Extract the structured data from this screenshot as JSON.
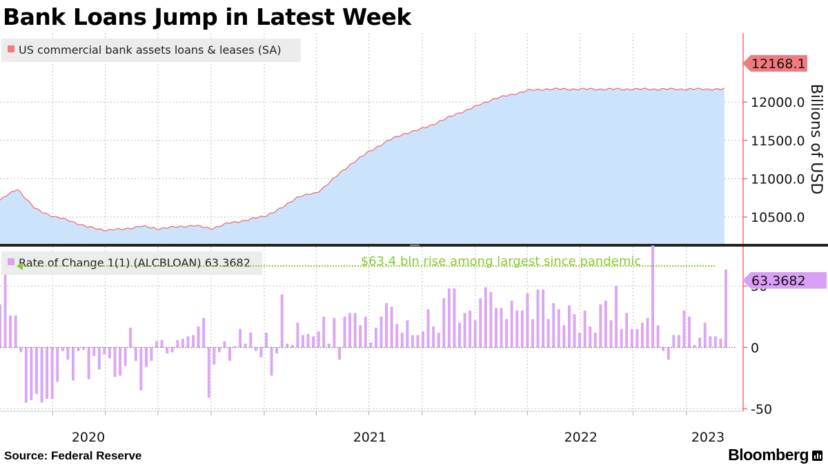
{
  "title": "Bank Loans Jump in Latest Week",
  "source": "Source:  Federal Reserve",
  "brand": "Bloomberg",
  "colors": {
    "area_fill": "#cce4fb",
    "area_line": "#f26d72",
    "bar": "#dba6f3",
    "annotation": "#86c92e",
    "axis": "#f26d72",
    "last_value_top": "#f27a7e",
    "last_value_bottom": "#d9a0f5"
  },
  "chart_data": [
    {
      "type": "area",
      "legend": "US commercial bank assets loans & leases (SA)",
      "ylabel": "Billions of USD",
      "y_ticks": [
        "12000.0",
        "11500.0",
        "11000.0",
        "10500.0"
      ],
      "ylim": [
        10150,
        12900
      ],
      "last_value_label": "12168.1",
      "x": [
        "2019-10-02",
        "2019-11-01",
        "2019-12-01",
        "2020-01-01",
        "2020-02-01",
        "2020-03-01",
        "2020-04-01",
        "2020-05-01",
        "2020-06-01",
        "2020-07-01",
        "2020-08-01",
        "2020-09-01",
        "2020-10-01",
        "2020-11-01",
        "2020-12-01",
        "2021-01-01",
        "2021-02-01",
        "2021-03-01",
        "2021-04-01",
        "2021-05-01",
        "2021-06-01",
        "2021-07-01",
        "2021-08-01",
        "2021-09-01",
        "2021-10-01",
        "2021-11-01",
        "2021-12-01",
        "2022-01-01",
        "2022-02-01",
        "2022-03-01",
        "2022-04-01",
        "2022-05-01",
        "2022-06-01",
        "2022-07-01",
        "2022-08-01",
        "2022-09-01",
        "2022-10-01",
        "2022-11-01",
        "2022-12-01",
        "2023-01-01",
        "2023-02-01",
        "2023-03-01",
        "2023-03-08"
      ],
      "values": [
        10720,
        10870,
        10610,
        10510,
        10450,
        10370,
        10330,
        10340,
        10380,
        10350,
        10370,
        10390,
        10350,
        10420,
        10460,
        10510,
        10620,
        10770,
        10810,
        11000,
        11200,
        11350,
        11490,
        11590,
        11650,
        11750,
        11850,
        11940,
        12040,
        12090,
        12150,
        12168.1,
        12168.1,
        12168.1,
        12168.1,
        12168.1,
        12168.1,
        12168.1,
        12168.1,
        12168.1,
        12168.1,
        12168.1,
        12168.1
      ]
    },
    {
      "type": "bar",
      "legend": "Rate of Change 1(1) (ALCBLOAN) 63.3682",
      "y_ticks": [
        "50",
        "0",
        "-50"
      ],
      "ylim": [
        -52,
        82
      ],
      "last_value_label": "63.3682",
      "annotation": "$63.4 bln rise among largest since pandemic",
      "annotation_level": 63.4,
      "values": [
        35,
        65,
        26,
        26,
        -4,
        -45,
        -43,
        -38,
        -45,
        -42,
        -42,
        -28,
        -3,
        -10,
        -27,
        -3,
        -2,
        -26,
        -7,
        -18,
        -6,
        -9,
        -24,
        -23,
        -15,
        16,
        -11,
        -35,
        -16,
        -11,
        5,
        6,
        -5,
        -4,
        6,
        7,
        9,
        10,
        17,
        24,
        -41,
        -14,
        -4,
        5,
        -11,
        1,
        15,
        3,
        12,
        -3,
        -8,
        12,
        -23,
        -5,
        43,
        3,
        2,
        20,
        10,
        11,
        9,
        13,
        25,
        3,
        24,
        -10,
        25,
        28,
        28,
        18,
        25,
        4,
        16,
        25,
        36,
        33,
        19,
        12,
        22,
        10,
        10,
        13,
        31,
        17,
        12,
        40,
        48,
        48,
        20,
        28,
        30,
        22,
        40,
        49,
        45,
        32,
        32,
        23,
        38,
        30,
        30,
        44,
        23,
        47,
        47,
        23,
        36,
        31,
        18,
        34,
        27,
        12,
        30,
        17,
        12,
        35,
        38,
        22,
        50,
        15,
        28,
        15,
        15,
        20,
        24,
        83,
        18,
        -3,
        -10,
        10,
        10,
        30,
        25,
        2,
        8,
        20,
        9,
        9,
        7,
        63.37
      ]
    }
  ],
  "x_axis": {
    "year_labels": [
      "2020",
      "2021",
      "2022",
      "2023"
    ]
  }
}
